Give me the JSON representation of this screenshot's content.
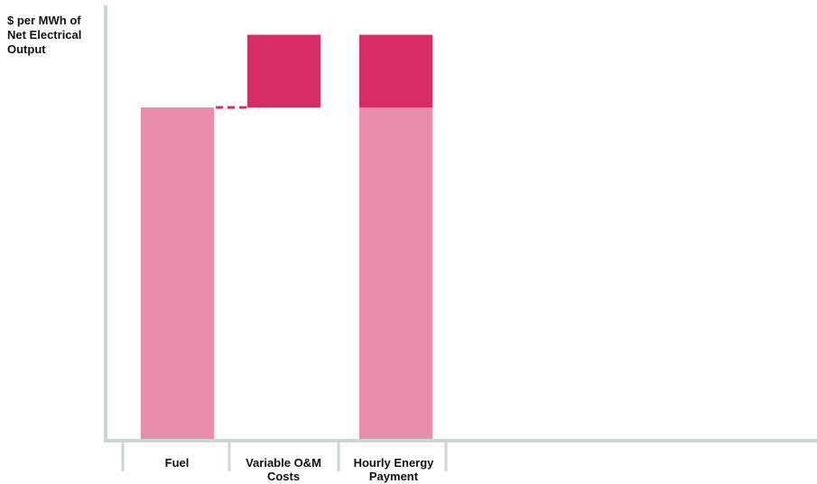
{
  "chart_data": {
    "type": "bar",
    "variant": "waterfall",
    "title": "",
    "ylabel_lines": [
      "$ per MWh of",
      "Net Electrical",
      "Output"
    ],
    "xlabel": "",
    "ylim": [
      0,
      100
    ],
    "categories": [
      {
        "label_lines": [
          "Fuel"
        ]
      },
      {
        "label_lines": [
          "Variable O&M",
          "Costs"
        ]
      },
      {
        "label_lines": [
          "Hourly Energy",
          "Payment"
        ]
      }
    ],
    "values": {
      "fuel": 80,
      "variable_om": 17.5,
      "hourly_energy_payment": 97.5
    },
    "segments": [
      {
        "category": 0,
        "base": 0,
        "value": 80,
        "component": "fuel"
      },
      {
        "category": 1,
        "base": 80,
        "value": 17.5,
        "component": "variable_om"
      },
      {
        "category": 2,
        "base": 0,
        "value": 80,
        "component": "fuel"
      },
      {
        "category": 2,
        "base": 80,
        "value": 17.5,
        "component": "variable_om"
      }
    ],
    "connector": {
      "from_category": 0,
      "to_category": 1,
      "level": 80,
      "style": "dashed"
    },
    "grid": false,
    "legend": "none",
    "colors": {
      "fuel": "#ea8dac",
      "variable_om": "#d82c66",
      "axis": "#c9d6d3"
    }
  }
}
